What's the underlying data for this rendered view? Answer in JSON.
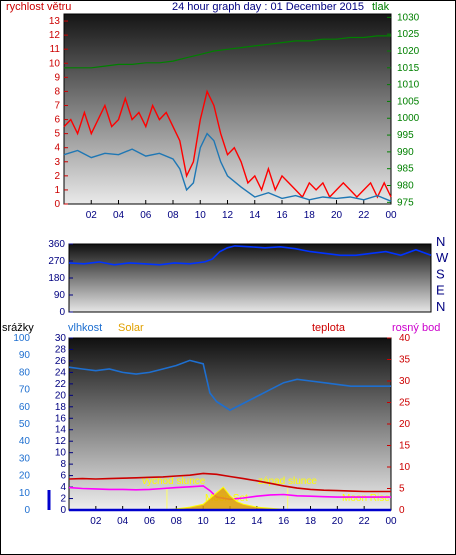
{
  "colors": {
    "wind": "#cc0000",
    "pressure": "#008000",
    "gust": "#ff0000",
    "speed": "#1f77b4",
    "dir": "#0033ff",
    "humidity": "#1e6fd0",
    "solar": "#e0a000",
    "temp": "#cc0000",
    "dew": "#ff00ff",
    "rain": "#0000cc",
    "title": "#000080"
  },
  "chart_data": [
    {
      "type": "line",
      "title": "24 hour graph day : 01 December 2015",
      "left_axis_label": "rychlost větru",
      "right_axis_label": "tlak",
      "x_tick_labels": [
        "02",
        "04",
        "06",
        "08",
        "10",
        "12",
        "14",
        "16",
        "18",
        "20",
        "22",
        "00"
      ],
      "y_left_ticks": [
        0,
        1,
        2,
        3,
        4,
        5,
        6,
        7,
        8,
        9,
        10,
        11,
        12,
        13
      ],
      "y_left_range": [
        0,
        13.5
      ],
      "y_right_ticks": [
        975,
        980,
        985,
        990,
        995,
        1000,
        1005,
        1010,
        1015,
        1020,
        1025,
        1030
      ],
      "y_right_range": [
        974.5,
        1031
      ],
      "series": [
        {
          "role": "gust",
          "x": [
            0,
            0.5,
            1,
            1.5,
            2,
            2.5,
            3,
            3.5,
            4,
            4.5,
            5,
            5.5,
            6,
            6.5,
            7,
            7.5,
            8,
            8.5,
            9,
            9.5,
            10,
            10.5,
            11,
            11.5,
            12,
            12.5,
            13,
            13.5,
            14,
            14.5,
            15,
            15.5,
            16,
            16.5,
            17,
            17.5,
            18,
            18.5,
            19,
            19.5,
            20,
            20.5,
            21,
            21.5,
            22,
            22.5,
            23,
            23.5,
            24
          ],
          "values": [
            5.5,
            6,
            5,
            6.5,
            5,
            6,
            7,
            5.5,
            6,
            7.5,
            6,
            6.5,
            5.5,
            7,
            6,
            6.5,
            5.5,
            4.5,
            2,
            3,
            6,
            8,
            7,
            5,
            3.5,
            4,
            3,
            1.5,
            2,
            1,
            2.5,
            1,
            2,
            1.5,
            1,
            0.5,
            1.5,
            1,
            1.5,
            0.5,
            1,
            1.5,
            1,
            0.5,
            1,
            1.5,
            0.5,
            1.5,
            0.5
          ]
        },
        {
          "role": "speed",
          "x": [
            0,
            1,
            2,
            3,
            4,
            5,
            6,
            7,
            8,
            8.5,
            9,
            9.5,
            10,
            10.5,
            11,
            11.5,
            12,
            13,
            14,
            15,
            16,
            17,
            18,
            19,
            20,
            21,
            22,
            23,
            24
          ],
          "values": [
            3.5,
            3.8,
            3.3,
            3.6,
            3.5,
            3.9,
            3.4,
            3.6,
            3.2,
            2.5,
            1,
            1.5,
            4,
            5,
            4.5,
            3,
            2,
            1.2,
            0.5,
            0.8,
            0.4,
            0.6,
            0.3,
            0.5,
            0.4,
            0.5,
            0.3,
            0.6,
            0.2
          ]
        },
        {
          "role": "pressure",
          "x": [
            0,
            2,
            3,
            4,
            5,
            6,
            7,
            8,
            9,
            10,
            11,
            12,
            13,
            14,
            15,
            16,
            17,
            18,
            19,
            20,
            21,
            22,
            23,
            24
          ],
          "values": [
            1015,
            1015,
            1015.5,
            1016,
            1016,
            1016.5,
            1016.5,
            1017,
            1018,
            1019,
            1020,
            1020.5,
            1021,
            1021.5,
            1022,
            1022.5,
            1023,
            1023,
            1023.5,
            1023.5,
            1024,
            1024,
            1024.5,
            1024.5
          ]
        }
      ]
    },
    {
      "type": "line",
      "y_ticks": [
        0,
        90,
        180,
        270,
        360
      ],
      "y_range": [
        0,
        360
      ],
      "right_labels": [
        "N",
        "W",
        "S",
        "E",
        "N"
      ],
      "series": [
        {
          "role": "direction",
          "x": [
            0,
            1,
            2,
            3,
            4,
            5,
            6,
            7,
            8,
            9,
            9.5,
            10,
            10.5,
            11,
            12,
            13,
            14,
            15,
            16,
            17,
            18,
            19,
            20,
            21,
            22,
            23,
            24
          ],
          "values": [
            260,
            255,
            265,
            250,
            260,
            255,
            250,
            260,
            255,
            265,
            280,
            320,
            340,
            350,
            345,
            340,
            345,
            335,
            320,
            310,
            300,
            300,
            310,
            320,
            300,
            330,
            300
          ]
        }
      ]
    },
    {
      "type": "line",
      "left_axis_label": "srážky",
      "humidity_label": "vlhkost",
      "solar_label": "Solar",
      "temp_label": "teplota",
      "dew_label": "rosný bod",
      "x_tick_labels": [
        "02",
        "04",
        "06",
        "08",
        "10",
        "12",
        "14",
        "16",
        "18",
        "20",
        "22",
        "00"
      ],
      "rain_ticks": [
        0,
        10,
        20,
        30,
        40,
        50,
        60,
        70,
        80,
        90,
        100
      ],
      "rain_range": [
        0,
        100
      ],
      "solar_ticks": [
        0,
        2,
        4,
        6,
        8,
        10,
        12,
        14,
        16,
        18,
        20,
        22,
        24,
        26,
        28,
        30
      ],
      "solar_range": [
        0,
        30
      ],
      "temp_ticks": [
        0,
        5,
        10,
        15,
        20,
        25,
        30,
        35,
        40
      ],
      "temp_range": [
        0,
        40
      ],
      "annotations": [
        "východ slunce",
        "západ slunce",
        "Moon Set",
        "Moon Rise"
      ],
      "series": [
        {
          "role": "humidity",
          "x": [
            0,
            1,
            2,
            3,
            4,
            5,
            6,
            7,
            8,
            9,
            10,
            10.5,
            11,
            12,
            13,
            14,
            15,
            16,
            17,
            18,
            19,
            20,
            21,
            22,
            23,
            24
          ],
          "values": [
            83,
            82,
            81,
            82,
            80,
            79,
            80,
            82,
            84,
            87,
            85,
            68,
            63,
            58,
            62,
            66,
            70,
            74,
            76,
            75,
            74,
            73,
            72,
            72,
            72,
            72
          ]
        },
        {
          "role": "temperature",
          "x": [
            0,
            1,
            2,
            3,
            4,
            5,
            6,
            7,
            8,
            9,
            10,
            11,
            12,
            13,
            14,
            15,
            16,
            17,
            18,
            19,
            20,
            21,
            22,
            23,
            24
          ],
          "values": [
            7.2,
            7.3,
            7.2,
            7.3,
            7.4,
            7.5,
            7.6,
            7.7,
            7.9,
            8.1,
            8.5,
            8.3,
            7.8,
            7.3,
            6.8,
            6.2,
            5.6,
            5.1,
            4.8,
            4.6,
            4.5,
            4.4,
            4.3,
            4.3,
            4.3
          ]
        },
        {
          "role": "dewpoint",
          "x": [
            0,
            1,
            2,
            3,
            4,
            5,
            6,
            7,
            8,
            9,
            10,
            10.5,
            11,
            12,
            13,
            14,
            15,
            16,
            17,
            18,
            19,
            20,
            21,
            22,
            23,
            24
          ],
          "values": [
            5.2,
            5.0,
            4.9,
            4.8,
            4.8,
            4.7,
            4.8,
            5.0,
            5.2,
            5.4,
            5.6,
            4.5,
            3.0,
            2.5,
            2.8,
            3.2,
            3.5,
            3.6,
            3.3,
            3.2,
            3.1,
            3.0,
            3.0,
            3.0,
            3.0,
            3.0
          ]
        },
        {
          "role": "solar",
          "x": [
            7,
            8,
            9,
            10,
            10.5,
            11,
            11.5,
            12,
            12.5,
            13,
            14,
            15,
            16,
            17
          ],
          "values": [
            0,
            0.2,
            0.5,
            1,
            2,
            3,
            4,
            2.5,
            1.5,
            1,
            0.5,
            0.3,
            0.1,
            0
          ]
        },
        {
          "role": "rain",
          "x": [
            0,
            24
          ],
          "values": [
            0,
            0
          ]
        }
      ]
    }
  ]
}
